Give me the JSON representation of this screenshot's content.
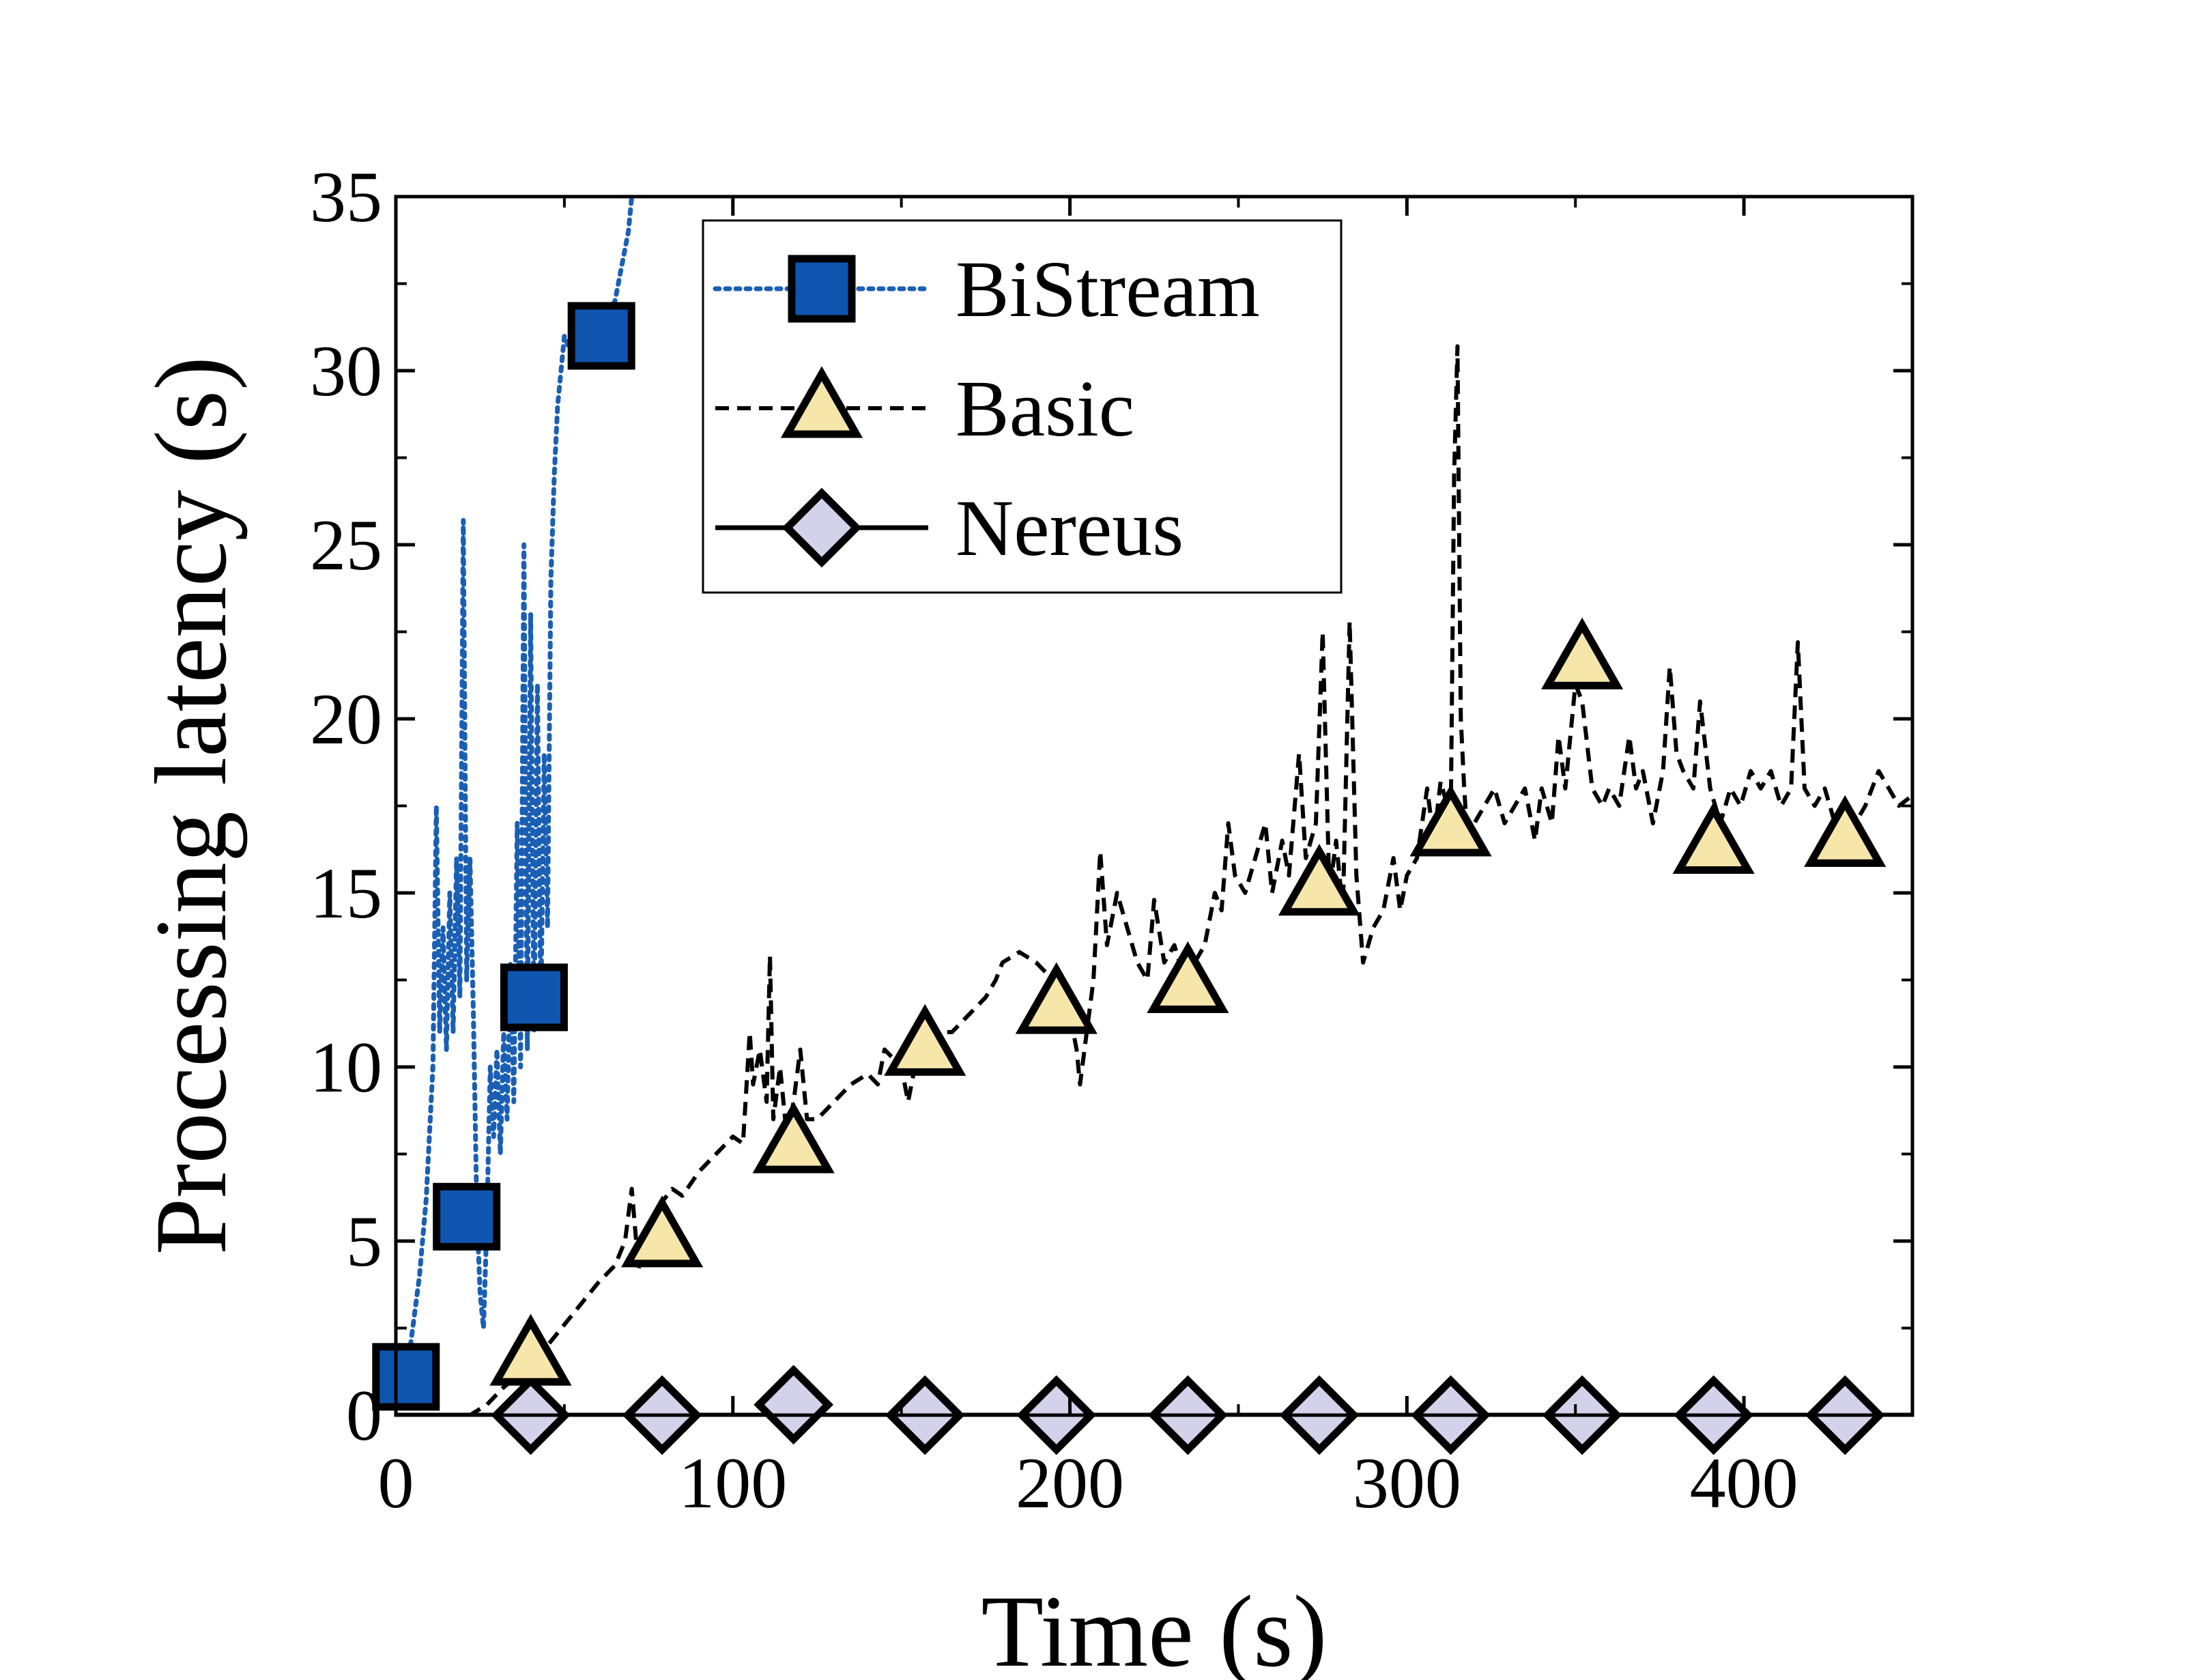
{
  "chart_data": {
    "type": "line",
    "xlabel": "Time (s)",
    "ylabel": "Processing latency (s)",
    "xlim": [
      0,
      450
    ],
    "ylim": [
      0,
      35
    ],
    "x_ticks": [
      0,
      100,
      200,
      300,
      400
    ],
    "x_tick_labels": [
      "0",
      "100",
      "200",
      "300",
      "400"
    ],
    "y_ticks": [
      0,
      5,
      10,
      15,
      20,
      25,
      30,
      35
    ],
    "y_tick_labels": [
      "0",
      "5",
      "10",
      "15",
      "20",
      "25",
      "30",
      "35"
    ],
    "grid": false,
    "legend_position": "top-center",
    "series": [
      {
        "name": "BiStream",
        "color": "#1a5fb4",
        "marker": "square",
        "marker_fill": "#0f55b0",
        "line_style": "dotted",
        "line": [
          [
            0,
            0.3
          ],
          [
            3,
            1.0
          ],
          [
            5,
            2.5
          ],
          [
            7,
            4.0
          ],
          [
            9,
            6.2
          ],
          [
            11,
            10.0
          ],
          [
            12,
            17.5
          ],
          [
            13,
            11.0
          ],
          [
            14,
            14.0
          ],
          [
            15,
            10.5
          ],
          [
            16,
            15.0
          ],
          [
            17,
            11.0
          ],
          [
            18,
            16.0
          ],
          [
            19,
            12.0
          ],
          [
            20,
            25.7
          ],
          [
            21,
            12.5
          ],
          [
            22,
            16.0
          ],
          [
            23,
            11.5
          ],
          [
            24,
            6.0
          ],
          [
            25,
            3.5
          ],
          [
            26,
            2.5
          ],
          [
            27,
            5.5
          ],
          [
            28,
            10.0
          ],
          [
            29,
            8.0
          ],
          [
            30,
            10.5
          ],
          [
            31,
            7.5
          ],
          [
            32,
            11.0
          ],
          [
            33,
            8.5
          ],
          [
            34,
            13.0
          ],
          [
            35,
            9.0
          ],
          [
            36,
            17.0
          ],
          [
            37,
            10.0
          ],
          [
            38,
            25.0
          ],
          [
            39,
            10.5
          ],
          [
            40,
            23.0
          ],
          [
            41,
            11.0
          ],
          [
            42,
            21.0
          ],
          [
            43,
            11.5
          ],
          [
            44,
            19.0
          ],
          [
            45,
            14.0
          ],
          [
            46,
            24.0
          ],
          [
            47,
            27.0
          ],
          [
            48,
            29.0
          ],
          [
            49,
            30.0
          ],
          [
            50,
            31.0
          ],
          [
            52,
            30.5
          ],
          [
            55,
            31.0
          ],
          [
            58,
            31.0
          ],
          [
            62,
            31.5
          ],
          [
            65,
            32.0
          ],
          [
            67,
            33.0
          ],
          [
            69,
            34.0
          ],
          [
            70,
            35.0
          ]
        ],
        "markers": [
          [
            3,
            1.1
          ],
          [
            21,
            5.7
          ],
          [
            41,
            12.0
          ],
          [
            61,
            31.0
          ]
        ]
      },
      {
        "name": "Basic",
        "color": "#000000",
        "marker": "triangle",
        "marker_fill": "#f7e6a9",
        "line_style": "dashed",
        "line": [
          [
            15,
            0
          ],
          [
            22,
            0
          ],
          [
            27,
            0.3
          ],
          [
            32,
            0.8
          ],
          [
            37,
            1.2
          ],
          [
            40,
            1.5
          ],
          [
            45,
            2.0
          ],
          [
            50,
            2.6
          ],
          [
            55,
            3.2
          ],
          [
            60,
            3.8
          ],
          [
            65,
            4.3
          ],
          [
            68,
            5.0
          ],
          [
            70,
            6.5
          ],
          [
            72,
            4.2
          ],
          [
            75,
            5.5
          ],
          [
            78,
            6.0
          ],
          [
            82,
            6.5
          ],
          [
            85,
            6.3
          ],
          [
            90,
            7.0
          ],
          [
            95,
            7.5
          ],
          [
            100,
            8.0
          ],
          [
            103,
            7.8
          ],
          [
            105,
            11.0
          ],
          [
            106,
            9.5
          ],
          [
            108,
            10.5
          ],
          [
            110,
            9.0
          ],
          [
            111,
            13.2
          ],
          [
            112,
            8.5
          ],
          [
            114,
            10.0
          ],
          [
            116,
            8.0
          ],
          [
            118,
            9.0
          ],
          [
            120,
            10.5
          ],
          [
            122,
            8.5
          ],
          [
            125,
            8.5
          ],
          [
            130,
            9.0
          ],
          [
            135,
            9.5
          ],
          [
            140,
            9.8
          ],
          [
            143,
            9.5
          ],
          [
            145,
            10.5
          ],
          [
            150,
            10.0
          ],
          [
            152,
            9.0
          ],
          [
            155,
            10.5
          ],
          [
            160,
            11.0
          ],
          [
            165,
            11.0
          ],
          [
            170,
            11.5
          ],
          [
            175,
            12.0
          ],
          [
            178,
            12.5
          ],
          [
            180,
            13.0
          ],
          [
            185,
            13.3
          ],
          [
            190,
            13.0
          ],
          [
            195,
            12.5
          ],
          [
            200,
            11.5
          ],
          [
            202,
            10.5
          ],
          [
            203,
            9.5
          ],
          [
            205,
            11.0
          ],
          [
            207,
            12.5
          ],
          [
            209,
            16.2
          ],
          [
            211,
            13.5
          ],
          [
            214,
            15.0
          ],
          [
            217,
            14.0
          ],
          [
            220,
            13.0
          ],
          [
            223,
            12.5
          ],
          [
            225,
            14.8
          ],
          [
            228,
            13.0
          ],
          [
            231,
            13.5
          ],
          [
            234,
            12.5
          ],
          [
            237,
            13.0
          ],
          [
            240,
            13.5
          ],
          [
            243,
            15.0
          ],
          [
            245,
            14.5
          ],
          [
            247,
            17.0
          ],
          [
            249,
            15.5
          ],
          [
            252,
            15.0
          ],
          [
            255,
            16.0
          ],
          [
            258,
            17.0
          ],
          [
            260,
            15.0
          ],
          [
            263,
            16.5
          ],
          [
            265,
            15.5
          ],
          [
            268,
            19.0
          ],
          [
            270,
            16.0
          ],
          [
            273,
            17.0
          ],
          [
            275,
            22.5
          ],
          [
            277,
            15.0
          ],
          [
            279,
            16.5
          ],
          [
            281,
            14.5
          ],
          [
            283,
            22.8
          ],
          [
            285,
            15.5
          ],
          [
            287,
            13.0
          ],
          [
            290,
            14.0
          ],
          [
            293,
            14.5
          ],
          [
            296,
            16.0
          ],
          [
            298,
            14.5
          ],
          [
            300,
            15.5
          ],
          [
            303,
            16.0
          ],
          [
            306,
            18.0
          ],
          [
            308,
            16.5
          ],
          [
            310,
            18.2
          ],
          [
            312,
            17.5
          ],
          [
            313,
            17.0
          ],
          [
            314,
            27.0
          ],
          [
            315,
            30.7
          ],
          [
            316,
            20.0
          ],
          [
            317,
            18.0
          ],
          [
            318,
            16.5
          ],
          [
            320,
            17.0
          ],
          [
            323,
            17.5
          ],
          [
            326,
            18.0
          ],
          [
            329,
            17.0
          ],
          [
            332,
            17.5
          ],
          [
            335,
            18.0
          ],
          [
            338,
            16.5
          ],
          [
            340,
            18.0
          ],
          [
            343,
            17.0
          ],
          [
            345,
            19.5
          ],
          [
            347,
            18.0
          ],
          [
            350,
            21.0
          ],
          [
            352,
            20.5
          ],
          [
            355,
            18.0
          ],
          [
            358,
            17.5
          ],
          [
            360,
            18.0
          ],
          [
            363,
            17.5
          ],
          [
            366,
            19.5
          ],
          [
            368,
            18.0
          ],
          [
            370,
            18.5
          ],
          [
            373,
            17.0
          ],
          [
            376,
            18.5
          ],
          [
            378,
            21.5
          ],
          [
            380,
            19.0
          ],
          [
            382,
            18.5
          ],
          [
            385,
            18.0
          ],
          [
            387,
            20.5
          ],
          [
            390,
            18.0
          ],
          [
            393,
            17.0
          ],
          [
            396,
            18.0
          ],
          [
            399,
            17.5
          ],
          [
            402,
            18.5
          ],
          [
            405,
            18.0
          ],
          [
            408,
            18.5
          ],
          [
            411,
            17.5
          ],
          [
            414,
            18.0
          ],
          [
            416,
            22.2
          ],
          [
            418,
            18.0
          ],
          [
            421,
            17.5
          ],
          [
            424,
            18.0
          ],
          [
            427,
            17.0
          ],
          [
            430,
            17.5
          ],
          [
            433,
            17.0
          ],
          [
            436,
            17.5
          ],
          [
            440,
            18.5
          ],
          [
            443,
            18.0
          ],
          [
            446,
            17.5
          ],
          [
            450,
            17.8
          ]
        ],
        "markers": [
          [
            40,
            1.7
          ],
          [
            79,
            5.1
          ],
          [
            118,
            7.8
          ],
          [
            157,
            10.6
          ],
          [
            196,
            11.8
          ],
          [
            235,
            12.4
          ],
          [
            274,
            15.2
          ],
          [
            313,
            16.9
          ],
          [
            352,
            21.7
          ],
          [
            391,
            16.4
          ],
          [
            430,
            16.6
          ]
        ]
      },
      {
        "name": "Nereus",
        "color": "#000000",
        "marker": "diamond",
        "marker_fill": "#d4d2ea",
        "line_style": "solid",
        "line": [
          [
            0,
            0
          ],
          [
            450,
            0
          ]
        ],
        "markers": [
          [
            40,
            0
          ],
          [
            79,
            0
          ],
          [
            118,
            0.3
          ],
          [
            157,
            0
          ],
          [
            196,
            0
          ],
          [
            235,
            0
          ],
          [
            274,
            0
          ],
          [
            313,
            0
          ],
          [
            352,
            0
          ],
          [
            391,
            0
          ],
          [
            430,
            0
          ]
        ]
      }
    ]
  }
}
